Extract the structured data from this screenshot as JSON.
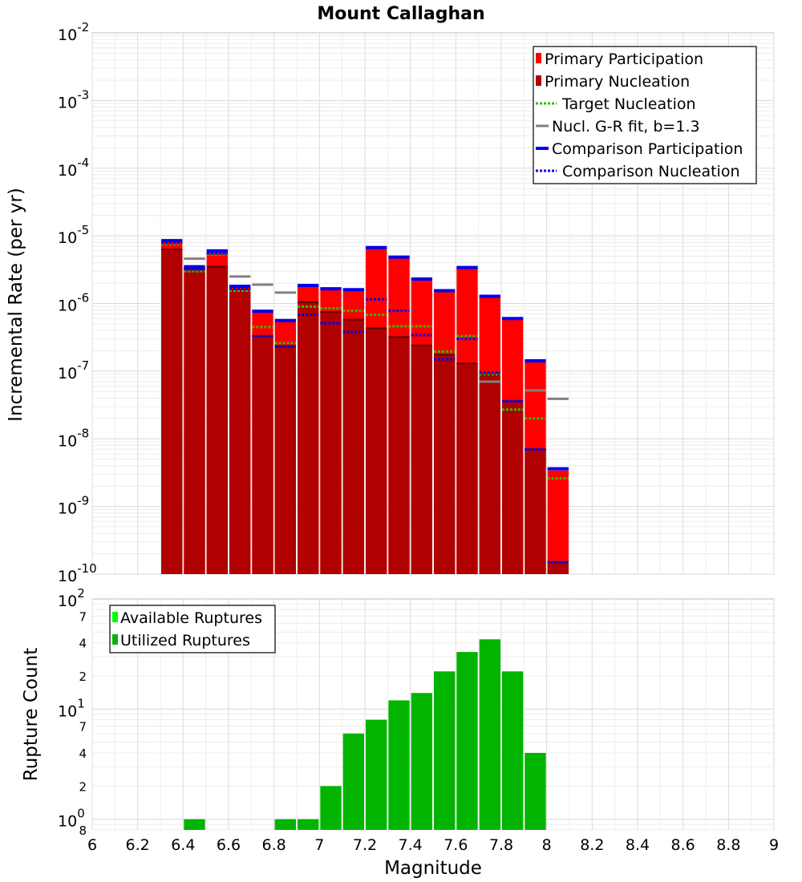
{
  "chart_data": [
    {
      "type": "bar",
      "title": "Mount Callaghan",
      "ylabel": "Incremental Rate (per yr)",
      "yscale": "log",
      "ylim": [
        1e-10,
        0.01
      ],
      "xlim": [
        6.0,
        9.0
      ],
      "bin_centers": [
        6.35,
        6.45,
        6.55,
        6.65,
        6.75,
        6.85,
        6.95,
        7.05,
        7.15,
        7.25,
        7.35,
        7.45,
        7.55,
        7.65,
        7.75,
        7.85,
        7.95,
        8.05
      ],
      "series": [
        {
          "name": "Primary Participation",
          "color": "#ff0000",
          "values": [
            8.3e-06,
            3.4e-06,
            5.8e-06,
            1.75e-06,
            7.5e-07,
            5.4e-07,
            1.8e-06,
            1.6e-06,
            1.55e-06,
            6.5e-06,
            4.7e-06,
            2.2e-06,
            1.5e-06,
            3.3e-06,
            1.25e-06,
            5.8e-07,
            1.38e-07,
            3.4e-09
          ]
        },
        {
          "name": "Primary Nucleation",
          "color": "#b00000",
          "values": [
            6.3e-06,
            3.3e-06,
            3.5e-06,
            1.6e-06,
            3.3e-07,
            2.3e-07,
            1.05e-06,
            7.5e-07,
            5.8e-07,
            4.3e-07,
            3.2e-07,
            2.4e-07,
            1.75e-07,
            1.3e-07,
            9e-08,
            3.6e-08,
            7e-09,
            1.5e-10
          ]
        },
        {
          "name": "Target Nucleation",
          "color": "#33bb00",
          "values": [
            7.6e-06,
            3e-06,
            5.3e-06,
            1.55e-06,
            4.5e-07,
            2.6e-07,
            9e-07,
            8.5e-07,
            7.8e-07,
            6.8e-07,
            4.6e-07,
            4.6e-07,
            1.95e-07,
            3.3e-07,
            9e-08,
            2.7e-08,
            2e-08,
            2.6e-09
          ]
        },
        {
          "name": "Nucl. G-R fit, b=1.3",
          "color": "#808080",
          "values": [
            null,
            4.6e-06,
            null,
            2.5e-06,
            1.9e-06,
            1.45e-06,
            null,
            null,
            null,
            null,
            null,
            null,
            null,
            null,
            7e-08,
            null,
            5.2e-08,
            3.9e-08
          ]
        },
        {
          "name": "Comparison Participation",
          "color": "#0000ee",
          "values": [
            8.5e-06,
            3.5e-06,
            6e-06,
            1.8e-06,
            7.7e-07,
            5.6e-07,
            1.85e-06,
            1.65e-06,
            1.6e-06,
            6.7e-06,
            4.85e-06,
            2.3e-06,
            1.55e-06,
            3.4e-06,
            1.28e-06,
            6e-07,
            1.42e-07,
            3.6e-09
          ]
        },
        {
          "name": "Comparison Nucleation",
          "color": "#0000ee",
          "values": [
            7.9e-06,
            3.2e-06,
            5.5e-06,
            1.65e-06,
            3.3e-07,
            2.35e-07,
            6.8e-07,
            5.1e-07,
            3.8e-07,
            1.15e-06,
            7.8e-07,
            3.4e-07,
            1.5e-07,
            3e-07,
            9.5e-08,
            3.6e-08,
            7e-09,
            1.5e-10
          ]
        }
      ],
      "legend": "top-right",
      "grid": true
    },
    {
      "type": "bar",
      "xlabel": "Magnitude",
      "ylabel": "Rupture Count",
      "yscale": "log",
      "ylim": [
        0.8,
        100
      ],
      "xlim": [
        6.0,
        9.0
      ],
      "bin_centers": [
        6.45,
        6.85,
        6.95,
        7.05,
        7.15,
        7.25,
        7.35,
        7.45,
        7.55,
        7.65,
        7.75,
        7.85,
        7.95
      ],
      "series": [
        {
          "name": "Available Ruptures",
          "color": "#00ff00",
          "values": [
            1,
            1,
            1,
            2,
            6,
            8,
            12,
            14,
            22,
            33,
            43,
            22,
            4
          ]
        },
        {
          "name": "Utilized Ruptures",
          "color": "#00b400",
          "values": [
            1,
            1,
            1,
            2,
            6,
            8,
            12,
            14,
            22,
            33,
            43,
            22,
            4
          ]
        }
      ],
      "legend": "top-left",
      "grid": true
    }
  ],
  "axes": {
    "x_ticks": [
      "6",
      "6.2",
      "6.4",
      "6.6",
      "6.8",
      "7",
      "7.2",
      "7.4",
      "7.6",
      "7.8",
      "8",
      "8.2",
      "8.4",
      "8.6",
      "8.8",
      "9"
    ],
    "top_y_exponents": [
      "-2",
      "-3",
      "-4",
      "-5",
      "-6",
      "-7",
      "-8",
      "-9",
      "-10"
    ],
    "top_y_base": "10",
    "bottom_y_major": [
      {
        "base": "10",
        "exp": "2"
      },
      {
        "base": "10",
        "exp": "1"
      },
      {
        "base": "10",
        "exp": "0"
      }
    ],
    "bottom_y_minor_labels": [
      "7",
      "4",
      "2",
      "7",
      "4",
      "2",
      "8"
    ]
  }
}
